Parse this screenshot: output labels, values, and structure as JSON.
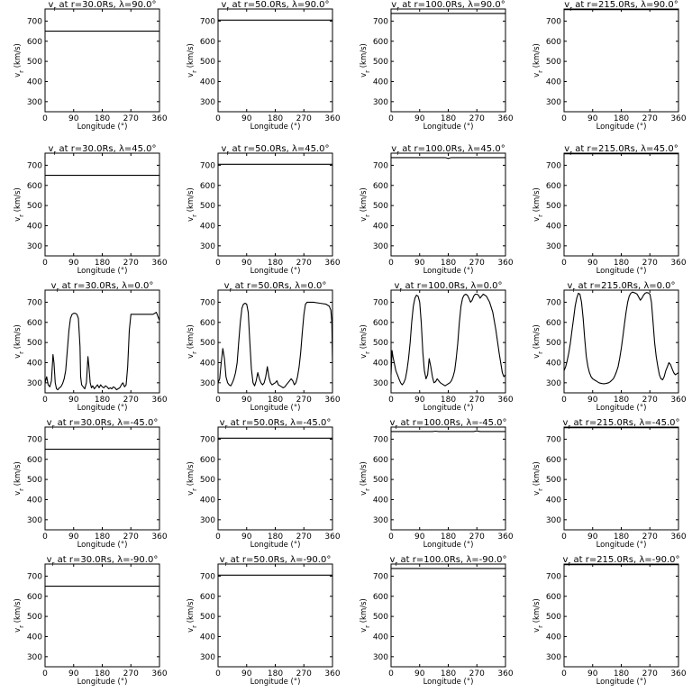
{
  "axes": {
    "x_label": "Longitude (°)",
    "y_label": "v_r (km/s)",
    "x_ticks": [
      "0",
      "90",
      "180",
      "270",
      "360"
    ],
    "y_ticks": [
      "300",
      "400",
      "500",
      "600",
      "700"
    ],
    "xlim": [
      0,
      360
    ],
    "ylim": [
      250,
      760
    ]
  },
  "chart_data": [
    {
      "type": "line",
      "title": "v_r at r=30.0Rs, λ=90.0°",
      "xlabel": "Longitude (°)",
      "ylabel": "v_r (km/s)",
      "xlim": [
        0,
        360
      ],
      "ylim": [
        250,
        760
      ],
      "x": [
        0,
        360
      ],
      "y": [
        650,
        650
      ]
    },
    {
      "type": "line",
      "title": "v_r at r=50.0Rs, λ=90.0°",
      "xlabel": "Longitude (°)",
      "ylabel": "v_r (km/s)",
      "xlim": [
        0,
        360
      ],
      "ylim": [
        250,
        760
      ],
      "x": [
        0,
        360
      ],
      "y": [
        705,
        705
      ]
    },
    {
      "type": "line",
      "title": "v_r at r=100.0Rs, λ=90.0°",
      "xlabel": "Longitude (°)",
      "ylabel": "v_r (km/s)",
      "xlim": [
        0,
        360
      ],
      "ylim": [
        250,
        760
      ],
      "x": [
        0,
        360
      ],
      "y": [
        738,
        738
      ]
    },
    {
      "type": "line",
      "title": "v_r at r=215.0Rs, λ=90.0°",
      "xlabel": "Longitude (°)",
      "ylabel": "v_r (km/s)",
      "xlim": [
        0,
        360
      ],
      "ylim": [
        250,
        760
      ],
      "x": [
        0,
        360
      ],
      "y": [
        757,
        757
      ]
    },
    {
      "type": "line",
      "title": "v_r at r=30.0Rs, λ=45.0°",
      "xlabel": "Longitude (°)",
      "ylabel": "v_r (km/s)",
      "xlim": [
        0,
        360
      ],
      "ylim": [
        250,
        760
      ],
      "x": [
        0,
        360
      ],
      "y": [
        650,
        650
      ]
    },
    {
      "type": "line",
      "title": "v_r at r=50.0Rs, λ=45.0°",
      "xlabel": "Longitude (°)",
      "ylabel": "v_r (km/s)",
      "xlim": [
        0,
        360
      ],
      "ylim": [
        250,
        760
      ],
      "x": [
        0,
        360
      ],
      "y": [
        705,
        705
      ]
    },
    {
      "type": "line",
      "title": "v_r at r=100.0Rs, λ=45.0°",
      "xlabel": "Longitude (°)",
      "ylabel": "v_r (km/s)",
      "xlim": [
        0,
        360
      ],
      "ylim": [
        250,
        760
      ],
      "x": [
        0,
        170,
        180,
        190,
        360
      ],
      "y": [
        738,
        738,
        734,
        738,
        738
      ]
    },
    {
      "type": "line",
      "title": "v_r at r=215.0Rs, λ=45.0°",
      "xlabel": "Longitude (°)",
      "ylabel": "v_r (km/s)",
      "xlim": [
        0,
        360
      ],
      "ylim": [
        250,
        760
      ],
      "x": [
        0,
        360
      ],
      "y": [
        757,
        757
      ]
    },
    {
      "type": "line",
      "title": "v_r at r=30.0Rs, λ=0.0°",
      "xlabel": "Longitude (°)",
      "ylabel": "v_r (km/s)",
      "xlim": [
        0,
        360
      ],
      "ylim": [
        250,
        760
      ],
      "x": [
        0,
        5,
        10,
        15,
        20,
        25,
        28,
        32,
        36,
        40,
        45,
        50,
        55,
        60,
        65,
        70,
        75,
        80,
        85,
        90,
        95,
        100,
        105,
        110,
        112,
        115,
        120,
        125,
        130,
        135,
        138,
        142,
        146,
        150,
        155,
        160,
        165,
        170,
        175,
        180,
        185,
        190,
        195,
        200,
        205,
        210,
        215,
        220,
        225,
        230,
        235,
        240,
        245,
        250,
        255,
        260,
        265,
        270,
        280,
        300,
        320,
        340,
        350,
        355,
        360
      ],
      "y": [
        300,
        330,
        290,
        280,
        310,
        440,
        400,
        300,
        270,
        265,
        275,
        280,
        295,
        320,
        360,
        460,
        560,
        620,
        640,
        645,
        645,
        640,
        620,
        480,
        330,
        290,
        280,
        270,
        300,
        430,
        380,
        300,
        275,
        285,
        270,
        280,
        290,
        275,
        290,
        280,
        275,
        285,
        280,
        270,
        275,
        270,
        280,
        275,
        265,
        270,
        275,
        290,
        300,
        280,
        290,
        380,
        560,
        640,
        640,
        640,
        640,
        640,
        650,
        630,
        610
      ]
    },
    {
      "type": "line",
      "title": "v_r at r=50.0Rs, λ=0.0°",
      "xlabel": "Longitude (°)",
      "ylabel": "v_r (km/s)",
      "xlim": [
        0,
        360
      ],
      "ylim": [
        250,
        760
      ],
      "x": [
        0,
        5,
        10,
        15,
        20,
        25,
        30,
        35,
        40,
        45,
        50,
        55,
        60,
        65,
        70,
        75,
        80,
        85,
        90,
        95,
        100,
        105,
        110,
        115,
        120,
        125,
        130,
        135,
        140,
        145,
        150,
        155,
        160,
        165,
        170,
        175,
        180,
        185,
        190,
        195,
        200,
        205,
        210,
        215,
        220,
        225,
        230,
        235,
        240,
        245,
        250,
        255,
        260,
        265,
        270,
        275,
        280,
        300,
        320,
        340,
        350,
        355,
        358,
        360
      ],
      "y": [
        300,
        320,
        400,
        470,
        420,
        330,
        300,
        290,
        285,
        300,
        320,
        350,
        400,
        500,
        600,
        670,
        690,
        695,
        690,
        650,
        500,
        370,
        300,
        285,
        310,
        350,
        320,
        300,
        290,
        300,
        330,
        380,
        330,
        300,
        290,
        295,
        300,
        310,
        290,
        285,
        280,
        275,
        280,
        290,
        300,
        310,
        320,
        310,
        290,
        300,
        330,
        380,
        450,
        550,
        640,
        690,
        700,
        700,
        695,
        690,
        680,
        660,
        600,
        400
      ]
    },
    {
      "type": "line",
      "title": "v_r at r=100.0Rs, λ=0.0°",
      "xlabel": "Longitude (°)",
      "ylabel": "v_r (km/s)",
      "xlim": [
        0,
        360
      ],
      "ylim": [
        250,
        760
      ],
      "x": [
        0,
        3,
        6,
        10,
        15,
        20,
        25,
        30,
        35,
        40,
        45,
        50,
        55,
        60,
        65,
        70,
        75,
        80,
        85,
        90,
        95,
        100,
        105,
        110,
        115,
        120,
        125,
        130,
        135,
        140,
        145,
        150,
        155,
        160,
        165,
        170,
        175,
        180,
        185,
        190,
        195,
        200,
        205,
        210,
        215,
        220,
        225,
        230,
        235,
        240,
        245,
        250,
        255,
        260,
        265,
        270,
        275,
        280,
        285,
        290,
        295,
        300,
        310,
        320,
        330,
        340,
        345,
        350,
        355,
        360
      ],
      "y": [
        340,
        460,
        430,
        400,
        360,
        340,
        320,
        300,
        290,
        300,
        320,
        360,
        420,
        500,
        600,
        680,
        720,
        735,
        730,
        700,
        600,
        450,
        360,
        320,
        340,
        420,
        380,
        330,
        300,
        305,
        320,
        310,
        300,
        295,
        290,
        285,
        290,
        295,
        300,
        310,
        330,
        360,
        420,
        500,
        600,
        680,
        720,
        735,
        740,
        735,
        720,
        700,
        710,
        730,
        740,
        740,
        735,
        720,
        730,
        740,
        735,
        730,
        700,
        650,
        560,
        450,
        400,
        350,
        330,
        340
      ]
    },
    {
      "type": "line",
      "title": "v_r at r=215.0Rs, λ=0.0°",
      "xlabel": "Longitude (°)",
      "ylabel": "v_r (km/s)",
      "xlim": [
        0,
        360
      ],
      "ylim": [
        250,
        760
      ],
      "x": [
        0,
        5,
        10,
        15,
        20,
        25,
        30,
        35,
        40,
        45,
        50,
        55,
        60,
        65,
        70,
        75,
        80,
        85,
        90,
        95,
        100,
        105,
        110,
        115,
        120,
        125,
        130,
        135,
        140,
        145,
        150,
        155,
        160,
        165,
        170,
        175,
        180,
        185,
        190,
        195,
        200,
        205,
        210,
        215,
        220,
        225,
        230,
        235,
        240,
        245,
        250,
        255,
        260,
        265,
        270,
        275,
        280,
        285,
        290,
        295,
        300,
        305,
        310,
        315,
        320,
        325,
        330,
        335,
        340,
        345,
        350,
        355,
        360
      ],
      "y": [
        360,
        380,
        410,
        450,
        500,
        560,
        620,
        680,
        720,
        745,
        740,
        700,
        620,
        520,
        430,
        380,
        350,
        330,
        320,
        315,
        310,
        305,
        300,
        298,
        296,
        295,
        296,
        298,
        300,
        305,
        312,
        320,
        335,
        355,
        380,
        420,
        470,
        530,
        590,
        650,
        700,
        730,
        745,
        750,
        748,
        745,
        740,
        725,
        710,
        720,
        735,
        745,
        748,
        746,
        740,
        700,
        600,
        500,
        430,
        380,
        340,
        320,
        315,
        330,
        360,
        380,
        400,
        390,
        370,
        350,
        340,
        345,
        350
      ]
    },
    {
      "type": "line",
      "title": "v_r at r=30.0Rs, λ=-45.0°",
      "xlabel": "Longitude (°)",
      "ylabel": "v_r (km/s)",
      "xlim": [
        0,
        360
      ],
      "ylim": [
        250,
        760
      ],
      "x": [
        0,
        360
      ],
      "y": [
        650,
        650
      ]
    },
    {
      "type": "line",
      "title": "v_r at r=50.0Rs, λ=-45.0°",
      "xlabel": "Longitude (°)",
      "ylabel": "v_r (km/s)",
      "xlim": [
        0,
        360
      ],
      "ylim": [
        250,
        760
      ],
      "x": [
        0,
        360
      ],
      "y": [
        705,
        705
      ]
    },
    {
      "type": "line",
      "title": "v_r at r=100.0Rs, λ=-45.0°",
      "xlabel": "Longitude (°)",
      "ylabel": "v_r (km/s)",
      "xlim": [
        0,
        360
      ],
      "ylim": [
        250,
        760
      ],
      "x": [
        0,
        130,
        140,
        150,
        260,
        270,
        280,
        360
      ],
      "y": [
        738,
        738,
        740,
        738,
        738,
        741,
        738,
        738
      ]
    },
    {
      "type": "line",
      "title": "v_r at r=215.0Rs, λ=-45.0°",
      "xlabel": "Longitude (°)",
      "ylabel": "v_r (km/s)",
      "xlim": [
        0,
        360
      ],
      "ylim": [
        250,
        760
      ],
      "x": [
        0,
        360
      ],
      "y": [
        757,
        757
      ]
    },
    {
      "type": "line",
      "title": "v_r at r=30.0Rs, λ=-90.0°",
      "xlabel": "Longitude (°)",
      "ylabel": "v_r (km/s)",
      "xlim": [
        0,
        360
      ],
      "ylim": [
        250,
        760
      ],
      "x": [
        0,
        360
      ],
      "y": [
        650,
        650
      ]
    },
    {
      "type": "line",
      "title": "v_r at r=50.0Rs, λ=-90.0°",
      "xlabel": "Longitude (°)",
      "ylabel": "v_r (km/s)",
      "xlim": [
        0,
        360
      ],
      "ylim": [
        250,
        760
      ],
      "x": [
        0,
        360
      ],
      "y": [
        705,
        705
      ]
    },
    {
      "type": "line",
      "title": "v_r at r=100.0Rs, λ=-90.0°",
      "xlabel": "Longitude (°)",
      "ylabel": "v_r (km/s)",
      "xlim": [
        0,
        360
      ],
      "ylim": [
        250,
        760
      ],
      "x": [
        0,
        360
      ],
      "y": [
        738,
        738
      ]
    },
    {
      "type": "line",
      "title": "v_r at r=215.0Rs, λ=-90.0°",
      "xlabel": "Longitude (°)",
      "ylabel": "v_r (km/s)",
      "xlim": [
        0,
        360
      ],
      "ylim": [
        250,
        760
      ],
      "x": [
        0,
        360
      ],
      "y": [
        757,
        757
      ]
    }
  ]
}
